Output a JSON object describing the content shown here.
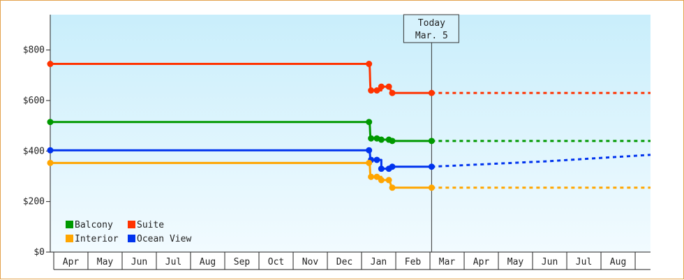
{
  "chart_data": {
    "type": "line",
    "step": true,
    "ylim": [
      0,
      940
    ],
    "ytick_values": [
      0,
      200,
      400,
      600,
      800
    ],
    "ytick_labels": [
      "$0",
      "$200",
      "$400",
      "$600",
      "$800"
    ],
    "xlim": [
      0,
      17.55
    ],
    "month_labels": [
      "Apr",
      "May",
      "Jun",
      "Jul",
      "Aug",
      "Sep",
      "Oct",
      "Nov",
      "Dec",
      "Jan",
      "Feb",
      "Mar",
      "Apr",
      "May",
      "Jun",
      "Jul",
      "Aug"
    ],
    "today": {
      "x": 11.15,
      "line1": "Today",
      "line2": "Mar. 5"
    },
    "legend": {
      "position": "bottom-left"
    },
    "grid": false,
    "series": [
      {
        "name": "Suite",
        "color": "#ff3300",
        "x": [
          0,
          9.32,
          9.38,
          9.55,
          9.68,
          9.9,
          10.0,
          11.15
        ],
        "y": [
          745,
          745,
          640,
          640,
          655,
          655,
          630,
          630
        ],
        "forecast": {
          "x": [
            11.15,
            17.55
          ],
          "y": [
            630,
            630
          ]
        }
      },
      {
        "name": "Balcony",
        "color": "#009900",
        "x": [
          0,
          9.32,
          9.38,
          9.55,
          9.68,
          9.9,
          10.0,
          11.15
        ],
        "y": [
          515,
          515,
          450,
          450,
          445,
          445,
          440,
          440
        ],
        "forecast": {
          "x": [
            11.15,
            17.55
          ],
          "y": [
            440,
            440
          ]
        }
      },
      {
        "name": "Ocean View",
        "color": "#0033ee",
        "x": [
          0,
          9.32,
          9.38,
          9.55,
          9.68,
          9.9,
          10.0,
          11.15
        ],
        "y": [
          403,
          403,
          365,
          365,
          330,
          330,
          338,
          338
        ],
        "forecast": {
          "x": [
            11.15,
            14.6,
            17.55
          ],
          "y": [
            338,
            360,
            385
          ]
        }
      },
      {
        "name": "Interior",
        "color": "#ffa500",
        "x": [
          0,
          9.32,
          9.38,
          9.55,
          9.68,
          9.9,
          10.0,
          11.15
        ],
        "y": [
          353,
          353,
          298,
          298,
          285,
          285,
          255,
          255
        ],
        "forecast": {
          "x": [
            11.15,
            17.55
          ],
          "y": [
            255,
            255
          ]
        }
      }
    ]
  }
}
